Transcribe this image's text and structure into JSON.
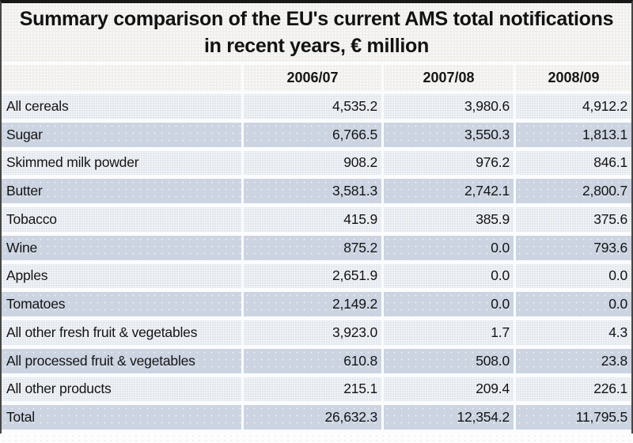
{
  "figure": {
    "title_line1": "Summary comparison of the EU's current AMS total notifications",
    "title_line2": "in recent years, € million"
  },
  "table": {
    "year_columns": [
      "2006/07",
      "2007/08",
      "2008/09"
    ],
    "rows": [
      {
        "label": "All cereals",
        "v1": "4,535.2",
        "v2": "3,980.6",
        "v3": "4,912.2"
      },
      {
        "label": "Sugar",
        "v1": "6,766.5",
        "v2": "3,550.3",
        "v3": "1,813.1"
      },
      {
        "label": "Skimmed milk powder",
        "v1": "908.2",
        "v2": "976.2",
        "v3": "846.1"
      },
      {
        "label": "Butter",
        "v1": "3,581.3",
        "v2": "2,742.1",
        "v3": "2,800.7"
      },
      {
        "label": "Tobacco",
        "v1": "415.9",
        "v2": "385.9",
        "v3": "375.6"
      },
      {
        "label": "Wine",
        "v1": "875.2",
        "v2": "0.0",
        "v3": "793.6"
      },
      {
        "label": "Apples",
        "v1": "2,651.9",
        "v2": "0.0",
        "v3": "0.0"
      },
      {
        "label": "Tomatoes",
        "v1": "2,149.2",
        "v2": "0.0",
        "v3": "0.0"
      },
      {
        "label": "All other fresh fruit & vegetables",
        "v1": "3,923.0",
        "v2": "1.7",
        "v3": "4.3"
      },
      {
        "label": "All processed fruit & vegetables",
        "v1": "610.8",
        "v2": "508.0",
        "v3": "23.8"
      },
      {
        "label": "All other products",
        "v1": "215.1",
        "v2": "209.4",
        "v3": "226.1"
      },
      {
        "label": "Total",
        "v1": "26,632.3",
        "v2": "12,354.2",
        "v3": "11,795.5"
      }
    ]
  },
  "colors": {
    "row_light": "#e2e6ed",
    "row_dark": "#ccd4e1",
    "panel_bg": "#f0efed",
    "separator": "#fbfcfd",
    "border_top": "#181818",
    "border_side": "#464646",
    "text": "#141414"
  },
  "chart_data": {
    "type": "table",
    "title": "Summary comparison of the EU's current AMS total notifications in recent years, € million",
    "unit": "€ million",
    "columns": [
      "2006/07",
      "2007/08",
      "2008/09"
    ],
    "rows": [
      {
        "label": "All cereals",
        "values": [
          4535.2,
          3980.6,
          4912.2
        ]
      },
      {
        "label": "Sugar",
        "values": [
          6766.5,
          3550.3,
          1813.1
        ]
      },
      {
        "label": "Skimmed milk powder",
        "values": [
          908.2,
          976.2,
          846.1
        ]
      },
      {
        "label": "Butter",
        "values": [
          3581.3,
          2742.1,
          2800.7
        ]
      },
      {
        "label": "Tobacco",
        "values": [
          415.9,
          385.9,
          375.6
        ]
      },
      {
        "label": "Wine",
        "values": [
          875.2,
          0.0,
          793.6
        ]
      },
      {
        "label": "Apples",
        "values": [
          2651.9,
          0.0,
          0.0
        ]
      },
      {
        "label": "Tomatoes",
        "values": [
          2149.2,
          0.0,
          0.0
        ]
      },
      {
        "label": "All other fresh fruit & vegetables",
        "values": [
          3923.0,
          1.7,
          4.3
        ]
      },
      {
        "label": "All processed fruit & vegetables",
        "values": [
          610.8,
          508.0,
          23.8
        ]
      },
      {
        "label": "All other products",
        "values": [
          215.1,
          209.4,
          226.1
        ]
      },
      {
        "label": "Total",
        "values": [
          26632.3,
          12354.2,
          11795.5
        ]
      }
    ]
  }
}
